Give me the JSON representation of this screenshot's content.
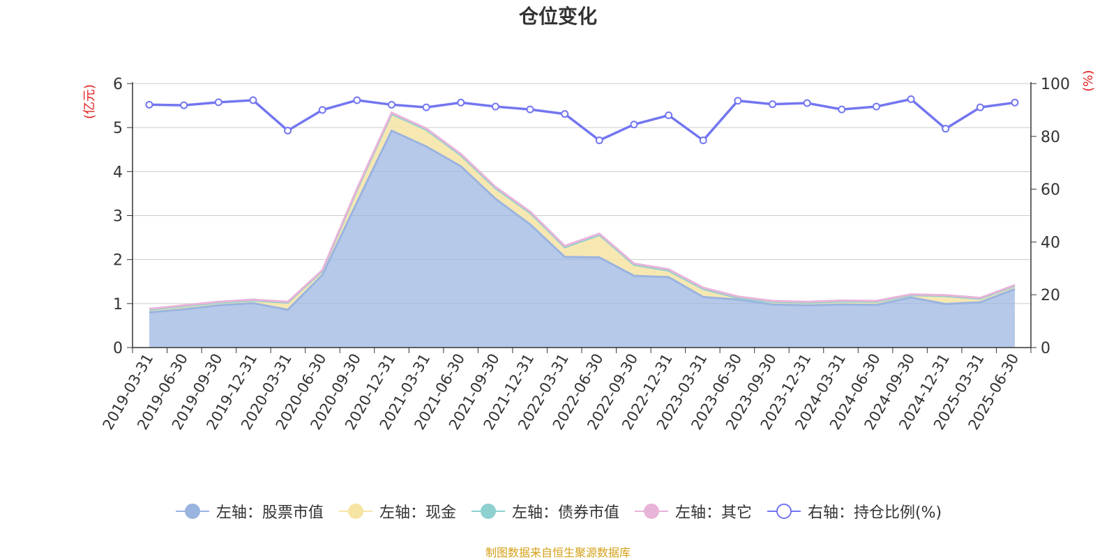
{
  "chart_data": {
    "type": "area",
    "title": "仓位变化",
    "y_left_unit": "(亿元)",
    "y_right_unit": "(%)",
    "ylim_left": [
      0,
      6
    ],
    "ylim_right": [
      0,
      100
    ],
    "yticks_left": [
      "0",
      "1",
      "2",
      "3",
      "4",
      "5",
      "6"
    ],
    "yticks_right": [
      "0",
      "20",
      "40",
      "60",
      "80",
      "100"
    ],
    "x": [
      "2019-03-31",
      "2019-06-30",
      "2019-09-30",
      "2019-12-31",
      "2020-03-31",
      "2020-06-30",
      "2020-09-30",
      "2020-12-31",
      "2021-03-31",
      "2021-06-30",
      "2021-09-30",
      "2021-12-31",
      "2022-03-31",
      "2022-06-30",
      "2022-09-30",
      "2022-12-31",
      "2023-03-31",
      "2023-06-30",
      "2023-09-30",
      "2023-12-31",
      "2024-03-31",
      "2024-06-30",
      "2024-09-30",
      "2024-12-31",
      "2025-03-31",
      "2025-06-30"
    ],
    "series": [
      {
        "name": "左轴：股票市值",
        "axis": "left",
        "stack": true,
        "color": "#9ab4e0",
        "values": [
          0.8,
          0.87,
          0.96,
          1.01,
          0.86,
          1.65,
          3.3,
          4.93,
          4.57,
          4.12,
          3.38,
          2.8,
          2.06,
          2.05,
          1.63,
          1.6,
          1.15,
          1.09,
          0.98,
          0.96,
          0.98,
          0.97,
          1.14,
          0.99,
          1.03,
          1.33
        ]
      },
      {
        "name": "左轴：现金",
        "axis": "left",
        "stack": true,
        "color": "#f6e4a4",
        "values": [
          0.06,
          0.07,
          0.06,
          0.06,
          0.16,
          0.09,
          0.28,
          0.38,
          0.38,
          0.25,
          0.24,
          0.26,
          0.22,
          0.51,
          0.25,
          0.15,
          0.18,
          0.04,
          0.06,
          0.06,
          0.07,
          0.07,
          0.05,
          0.18,
          0.08,
          0.07
        ]
      },
      {
        "name": "左轴：债券市值",
        "axis": "left",
        "stack": true,
        "color": "#8fd0d0",
        "values": [
          0,
          0,
          0,
          0,
          0,
          0,
          0,
          0,
          0,
          0,
          0,
          0,
          0,
          0,
          0,
          0,
          0,
          0,
          0,
          0,
          0,
          0,
          0,
          0,
          0,
          0
        ]
      },
      {
        "name": "左轴：其它",
        "axis": "left",
        "stack": true,
        "color": "#e8b4d8",
        "values": [
          0.02,
          0.02,
          0.02,
          0.02,
          0.02,
          0.02,
          0.03,
          0.03,
          0.03,
          0.03,
          0.03,
          0.03,
          0.03,
          0.03,
          0.03,
          0.03,
          0.03,
          0.03,
          0.02,
          0.02,
          0.02,
          0.02,
          0.02,
          0.02,
          0.02,
          0.02
        ]
      },
      {
        "name": "右轴：持仓比例(%)",
        "axis": "right",
        "type": "line",
        "color": "#7376f0",
        "values": [
          92.0,
          91.8,
          92.9,
          93.7,
          82.2,
          90.0,
          93.7,
          92.0,
          91.0,
          92.8,
          91.3,
          90.2,
          88.5,
          78.5,
          84.5,
          88.0,
          78.5,
          93.5,
          92.2,
          92.6,
          90.2,
          91.3,
          94.1,
          82.9,
          91.0,
          92.8
        ]
      }
    ],
    "legend_position": "bottom"
  },
  "source_text": "制图数据来自恒生聚源数据库",
  "colors": {
    "axis_text": "#333333",
    "unit_text": "#e02020",
    "grid": "#cccccc",
    "source": "#d4a017"
  }
}
